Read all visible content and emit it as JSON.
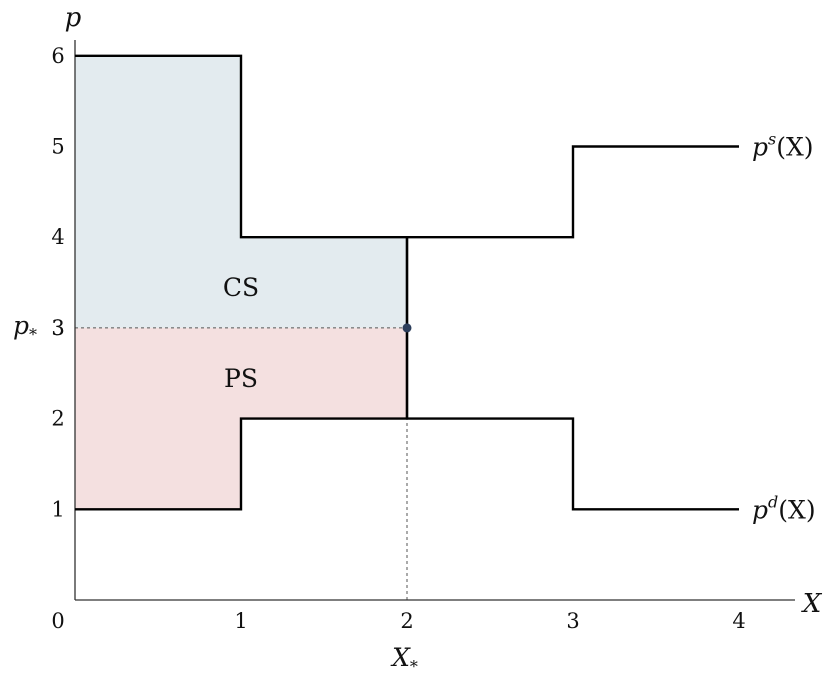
{
  "chart_data": {
    "type": "line",
    "xlabel": "X",
    "ylabel": "p",
    "xlim": [
      0,
      4
    ],
    "ylim": [
      0,
      6
    ],
    "x_ticks": [
      "0",
      "1",
      "2",
      "3",
      "4"
    ],
    "y_ticks": [
      "1",
      "2",
      "3",
      "4",
      "5",
      "6"
    ],
    "series": [
      {
        "name": "p^s(X)",
        "label_main": "p",
        "label_sup": "s",
        "label_tail": "(X)",
        "step_points": [
          [
            0,
            6
          ],
          [
            1,
            6
          ],
          [
            1,
            4
          ],
          [
            3,
            4
          ],
          [
            3,
            5
          ],
          [
            4,
            5
          ]
        ],
        "color": "#000000"
      },
      {
        "name": "p^d(X)",
        "label_main": "p",
        "label_sup": "d",
        "label_tail": "(X)",
        "step_points": [
          [
            0,
            1
          ],
          [
            1,
            1
          ],
          [
            1,
            2
          ],
          [
            3,
            2
          ],
          [
            3,
            1
          ],
          [
            4,
            1
          ]
        ],
        "color": "#000000"
      }
    ],
    "equilibrium": {
      "x": 2,
      "p": 3,
      "x_label": "X*",
      "p_label": "p*",
      "vertical_segment": [
        2,
        4
      ],
      "color": "#2c3e5c"
    },
    "regions": [
      {
        "label": "CS",
        "color": "#e3ebef",
        "polygon": [
          [
            0,
            6
          ],
          [
            1,
            6
          ],
          [
            1,
            4
          ],
          [
            2,
            4
          ],
          [
            2,
            3
          ],
          [
            0,
            3
          ]
        ],
        "label_at": [
          1,
          3.45
        ]
      },
      {
        "label": "PS",
        "color": "#f4e0e0",
        "polygon": [
          [
            0,
            3
          ],
          [
            2,
            3
          ],
          [
            2,
            2
          ],
          [
            1,
            2
          ],
          [
            1,
            1
          ],
          [
            0,
            1
          ]
        ],
        "label_at": [
          1,
          2.45
        ]
      }
    ],
    "grid": false,
    "legend": "none"
  }
}
